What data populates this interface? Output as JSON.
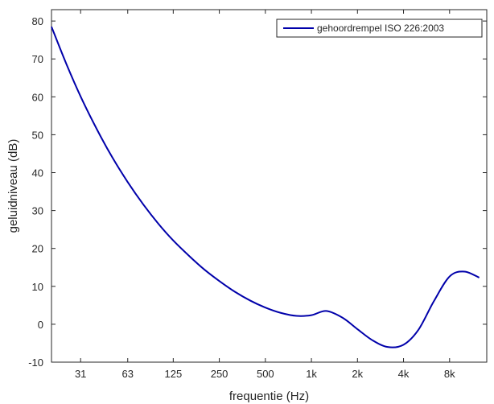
{
  "chart_data": {
    "type": "line",
    "title": "",
    "xlabel": "frequentie (Hz)",
    "ylabel": "geluidniveau (dB)",
    "xscale": "log2",
    "xlim": [
      20,
      14000
    ],
    "ylim": [
      -10,
      83
    ],
    "grid": false,
    "legend_position": "top-right",
    "x_ticks": [
      {
        "value": 31,
        "label": "31"
      },
      {
        "value": 63,
        "label": "63"
      },
      {
        "value": 125,
        "label": "125"
      },
      {
        "value": 250,
        "label": "250"
      },
      {
        "value": 500,
        "label": "500"
      },
      {
        "value": 1000,
        "label": "1k"
      },
      {
        "value": 2000,
        "label": "2k"
      },
      {
        "value": 4000,
        "label": "4k"
      },
      {
        "value": 8000,
        "label": "8k"
      }
    ],
    "y_ticks": [
      -10,
      0,
      10,
      20,
      30,
      40,
      50,
      60,
      70,
      80
    ],
    "series": [
      {
        "name": "gehoordrempel ISO 226:2003",
        "color": "#0000aa",
        "x": [
          20,
          25,
          31.5,
          40,
          50,
          63,
          80,
          100,
          125,
          160,
          200,
          250,
          315,
          400,
          500,
          630,
          800,
          1000,
          1250,
          1600,
          2000,
          2500,
          3150,
          4000,
          5000,
          6300,
          8000,
          10000,
          12500
        ],
        "y": [
          78.5,
          68.7,
          59.5,
          51.1,
          44.0,
          37.5,
          31.5,
          26.5,
          22.1,
          17.9,
          14.4,
          11.4,
          8.6,
          6.2,
          4.4,
          3.0,
          2.2,
          2.4,
          3.5,
          1.7,
          -1.3,
          -4.2,
          -6.0,
          -5.4,
          -1.5,
          6.0,
          12.6,
          13.9,
          12.3
        ]
      }
    ]
  }
}
